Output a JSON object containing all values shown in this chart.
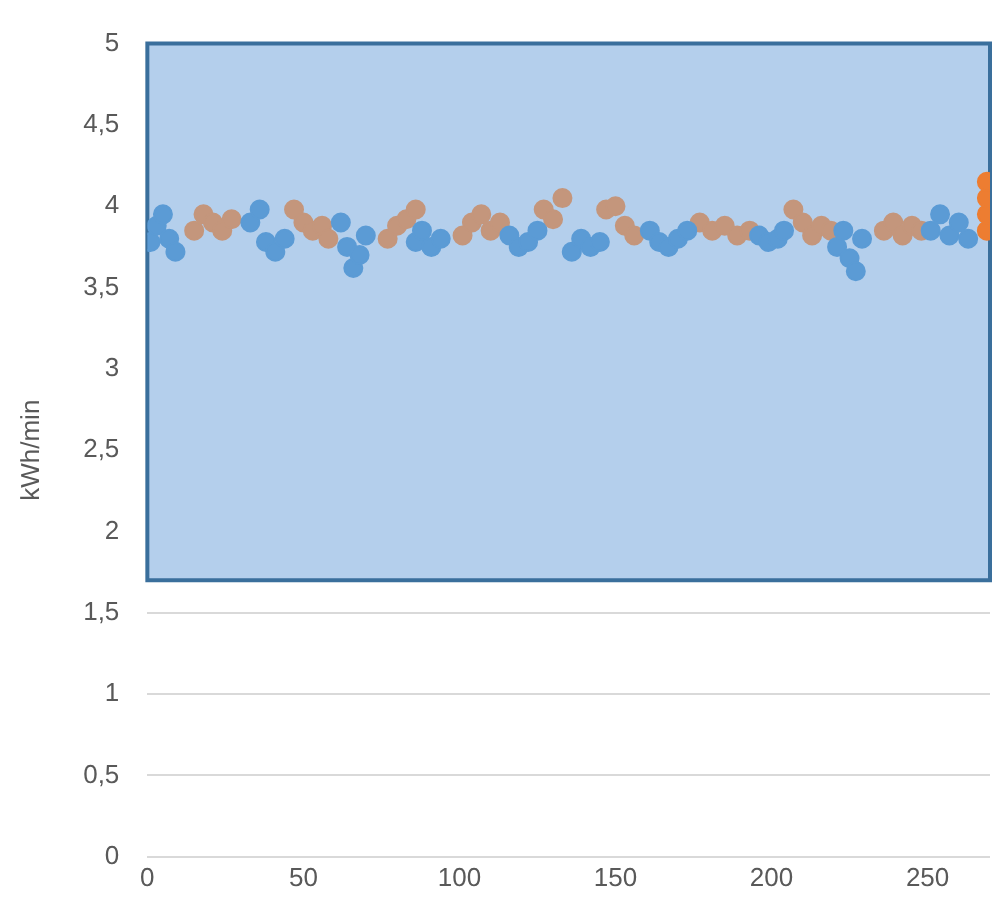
{
  "chart_data": {
    "type": "scatter",
    "ylabel": "kWh/min",
    "xlim": [
      0,
      270
    ],
    "xticks": [
      0,
      50,
      100,
      150,
      200,
      250
    ],
    "ylim": [
      0,
      5
    ],
    "yticks": [
      0,
      {
        "value": 0.5,
        "label": "0,5"
      },
      1,
      {
        "value": 1.5,
        "label": "1,5"
      },
      2,
      {
        "value": 2.5,
        "label": "2,5"
      },
      3,
      {
        "value": 3.5,
        "label": "3,5"
      },
      4,
      {
        "value": 4.5,
        "label": "4,5"
      },
      5
    ],
    "grid": "y",
    "marker": "circle",
    "legend": false,
    "bands": [
      {
        "axis": "y",
        "from": 1.7,
        "to": 5,
        "color": "#b4cfec"
      }
    ],
    "series": [
      {
        "color": "#5b9bd5",
        "x": [
          1,
          3,
          5,
          7,
          9,
          33,
          36,
          38,
          41,
          44,
          62,
          64,
          66,
          68,
          70,
          86,
          88,
          91,
          94,
          116,
          119,
          122,
          125,
          136,
          139,
          142,
          145,
          161,
          164,
          167,
          170,
          173,
          196,
          199,
          202,
          204,
          221,
          223,
          225,
          227,
          229,
          251,
          254,
          257,
          260,
          263
        ],
        "values": [
          3.78,
          3.88,
          3.95,
          3.8,
          3.72,
          3.9,
          3.98,
          3.78,
          3.72,
          3.8,
          3.9,
          3.75,
          3.62,
          3.7,
          3.82,
          3.78,
          3.85,
          3.75,
          3.8,
          3.82,
          3.75,
          3.78,
          3.85,
          3.72,
          3.8,
          3.75,
          3.78,
          3.85,
          3.78,
          3.75,
          3.8,
          3.85,
          3.82,
          3.78,
          3.8,
          3.85,
          3.75,
          3.85,
          3.68,
          3.6,
          3.8,
          3.85,
          3.95,
          3.82,
          3.9,
          3.8
        ]
      },
      {
        "color": "#c4967c",
        "x": [
          15,
          18,
          21,
          24,
          27,
          47,
          50,
          53,
          56,
          58,
          77,
          80,
          83,
          86,
          101,
          104,
          107,
          110,
          113,
          127,
          130,
          133,
          147,
          150,
          153,
          156,
          177,
          181,
          185,
          189,
          193,
          207,
          210,
          213,
          216,
          219,
          236,
          239,
          242,
          245,
          248
        ],
        "values": [
          3.85,
          3.95,
          3.9,
          3.85,
          3.92,
          3.98,
          3.9,
          3.85,
          3.88,
          3.8,
          3.8,
          3.88,
          3.92,
          3.98,
          3.82,
          3.9,
          3.95,
          3.85,
          3.9,
          3.98,
          3.92,
          4.05,
          3.98,
          4.0,
          3.88,
          3.82,
          3.9,
          3.85,
          3.88,
          3.82,
          3.85,
          3.98,
          3.9,
          3.82,
          3.88,
          3.85,
          3.85,
          3.9,
          3.82,
          3.88,
          3.85
        ]
      },
      {
        "color": "#ed7d31",
        "x": [
          269,
          269,
          269,
          269
        ],
        "values": [
          3.85,
          3.95,
          4.05,
          4.15
        ]
      }
    ]
  }
}
